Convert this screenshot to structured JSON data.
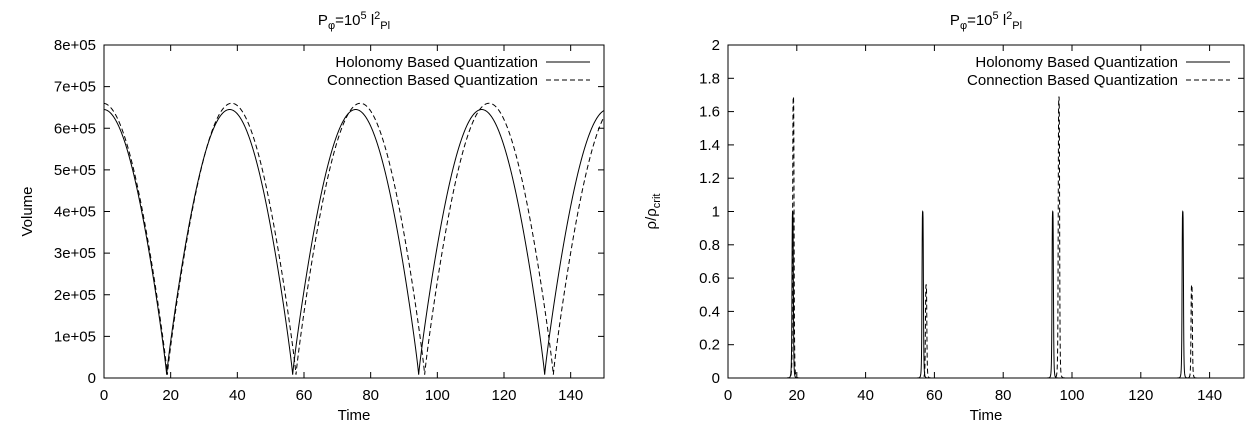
{
  "chart_data": [
    {
      "type": "line",
      "title": {
        "base": "P",
        "base_sub": "φ",
        "mid": "=10",
        "sup": "5",
        "unit": " l",
        "unit_sup": "2",
        "unit_sub": "Pl"
      },
      "xlabel": "Time",
      "ylabel": "Volume",
      "xlim": [
        0,
        150
      ],
      "ylim": [
        0,
        800000
      ],
      "xticks": [
        "0",
        "20",
        "40",
        "60",
        "80",
        "100",
        "120",
        "140"
      ],
      "xtick_values": [
        0,
        20,
        40,
        60,
        80,
        100,
        120,
        140
      ],
      "yticks": [
        "0",
        "1e+05",
        "2e+05",
        "3e+05",
        "4e+05",
        "5e+05",
        "6e+05",
        "7e+05",
        "8e+05"
      ],
      "ytick_values": [
        0,
        100000,
        200000,
        300000,
        400000,
        500000,
        600000,
        700000,
        800000
      ],
      "grid": false,
      "legend_position": "top-right",
      "series": [
        {
          "name": "Holonomy Based Quantization",
          "style": "solid",
          "color": "#000000",
          "model": "periodic-arch",
          "bounces": [
            18.8,
            56.6,
            94.4,
            132.2
          ],
          "max": 645000,
          "min": 8000,
          "exponent": 0.9
        },
        {
          "name": "Connection Based Quantization",
          "style": "dashed",
          "color": "#000000",
          "model": "periodic-arch",
          "bounces": [
            19.0,
            57.6,
            96.2,
            134.8
          ],
          "max": 660000,
          "min": 8000,
          "exponent": 0.9
        }
      ]
    },
    {
      "type": "line",
      "title": {
        "base": "P",
        "base_sub": "φ",
        "mid": "=10",
        "sup": "5",
        "unit": " l",
        "unit_sup": "2",
        "unit_sub": "Pl"
      },
      "xlabel": "Time",
      "ylabel": {
        "base": "ρ/ρ",
        "sub": "crit"
      },
      "xlim": [
        0,
        150
      ],
      "ylim": [
        0,
        2
      ],
      "xticks": [
        "0",
        "20",
        "40",
        "60",
        "80",
        "100",
        "120",
        "140"
      ],
      "xtick_values": [
        0,
        20,
        40,
        60,
        80,
        100,
        120,
        140
      ],
      "yticks": [
        "0",
        "0.2",
        "0.4",
        "0.6",
        "0.8",
        "1",
        "1.2",
        "1.4",
        "1.6",
        "1.8",
        "2"
      ],
      "ytick_values": [
        0,
        0.2,
        0.4,
        0.6,
        0.8,
        1.0,
        1.2,
        1.4,
        1.6,
        1.8,
        2.0
      ],
      "grid": false,
      "legend_position": "top-right",
      "series": [
        {
          "name": "Holonomy Based Quantization",
          "style": "solid",
          "color": "#000000",
          "model": "spikes",
          "peaks": [
            {
              "x": 18.8,
              "y": 1.0
            },
            {
              "x": 56.6,
              "y": 1.0
            },
            {
              "x": 94.4,
              "y": 1.0
            },
            {
              "x": 132.2,
              "y": 1.0
            }
          ]
        },
        {
          "name": "Connection Based Quantization",
          "style": "dashed",
          "color": "#000000",
          "model": "spikes",
          "peaks": [
            {
              "x": 19.0,
              "y": 1.69
            },
            {
              "x": 57.6,
              "y": 0.56
            },
            {
              "x": 96.2,
              "y": 1.69
            },
            {
              "x": 134.8,
              "y": 0.56
            }
          ]
        }
      ]
    }
  ]
}
